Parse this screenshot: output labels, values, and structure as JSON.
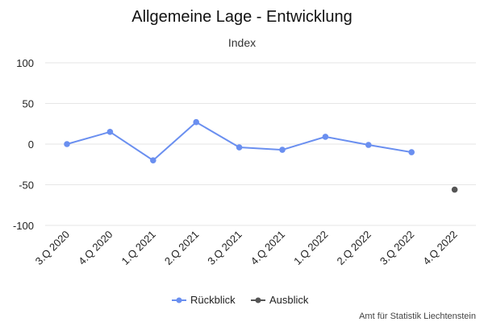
{
  "chart_data": {
    "type": "line",
    "title": "Allgemeine Lage - Entwicklung",
    "subtitle": "Index",
    "categories": [
      "3.Q 2020",
      "4.Q 2020",
      "1.Q 2021",
      "2.Q 2021",
      "3.Q 2021",
      "4.Q 2021",
      "1.Q 2022",
      "2.Q 2022",
      "3.Q 2022",
      "4.Q 2022"
    ],
    "yticks": [
      "100",
      "50",
      "0",
      "-50",
      "-100"
    ],
    "ylim": [
      -100,
      100
    ],
    "grid": true,
    "legend_position": "bottom",
    "series": [
      {
        "name": "Rückblick",
        "color": "#6a8ff0",
        "values": [
          0,
          15,
          -20,
          27,
          -4,
          -7,
          9,
          -1,
          -10,
          null
        ]
      },
      {
        "name": "Ausblick",
        "color": "#555555",
        "values": [
          null,
          null,
          null,
          null,
          null,
          null,
          null,
          null,
          null,
          -56
        ]
      }
    ],
    "credit": "Amt für Statistik Liechtenstein"
  }
}
